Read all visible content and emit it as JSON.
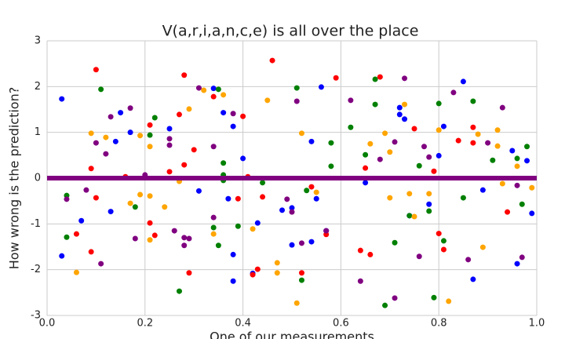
{
  "chart_data": {
    "type": "scatter",
    "title": "V(a,r,i,a,n,c,e) is all over the place",
    "x_label": "One of our measurements",
    "y_label": "How wrong is the prediction?",
    "xlim": [
      0,
      1
    ],
    "ylim": [
      -3,
      3
    ],
    "xticks": [
      {
        "value": 0,
        "label": "0.0"
      },
      0.2,
      0.4,
      0.6,
      0.8,
      {
        "value": 1,
        "label": "1.0"
      }
    ],
    "yticks": [
      -3,
      -2,
      -1,
      0,
      1,
      2,
      3
    ],
    "grid": true,
    "hline": {
      "value": 0,
      "color": "#800080"
    },
    "series": [
      {
        "color": "#0000ff",
        "x": [
          0.03,
          0.03,
          0.07,
          0.13,
          0.14,
          0.15,
          0.17,
          0.25,
          0.31,
          0.34,
          0.36,
          0.37,
          0.38,
          0.38,
          0.38,
          0.4,
          0.42,
          0.43,
          0.48,
          0.5,
          0.5,
          0.54,
          0.55,
          0.54,
          0.56,
          0.57,
          0.65,
          0.72,
          0.72,
          0.73,
          0.74,
          0.78,
          0.8,
          0.81,
          0.85,
          0.87,
          0.89,
          0.95,
          0.96,
          0.98,
          0.99
        ],
        "values": [
          1.73,
          -1.7,
          -0.93,
          -0.73,
          0.8,
          1.43,
          1.0,
          1.08,
          -0.28,
          1.96,
          1.43,
          -0.45,
          1.13,
          -1.67,
          -2.25,
          0.43,
          -2.08,
          -0.98,
          -0.7,
          -0.65,
          -1.46,
          0.8,
          -0.45,
          -1.39,
          1.99,
          -1.15,
          -0.1,
          1.54,
          1.39,
          1.29,
          -0.82,
          -0.57,
          0.49,
          1.13,
          2.11,
          -2.21,
          -0.26,
          0.6,
          -1.87,
          0.38,
          -0.77
        ]
      },
      {
        "color": "#ff0000",
        "x": [
          0.1,
          0.06,
          0.09,
          0.1,
          0.09,
          0.16,
          0.21,
          0.21,
          0.22,
          0.25,
          0.27,
          0.28,
          0.28,
          0.3,
          0.29,
          0.34,
          0.39,
          0.4,
          0.41,
          0.42,
          0.43,
          0.44,
          0.46,
          0.52,
          0.54,
          0.57,
          0.59,
          0.64,
          0.65,
          0.66,
          0.68,
          0.75,
          0.79,
          0.8,
          0.81,
          0.84,
          0.87,
          0.87,
          0.94
        ],
        "values": [
          2.37,
          -1.22,
          0.21,
          -0.43,
          -1.61,
          0.03,
          1.16,
          -0.98,
          -1.25,
          0.14,
          1.39,
          2.25,
          0.29,
          0.62,
          -2.07,
          1.78,
          -0.45,
          1.35,
          0.03,
          -2.11,
          -1.99,
          -0.41,
          2.57,
          -2.07,
          -0.19,
          -1.23,
          2.19,
          -1.58,
          0.22,
          -1.67,
          2.21,
          1.08,
          0.15,
          -1.21,
          -1.56,
          0.82,
          0.77,
          1.11,
          -0.74
        ]
      },
      {
        "color": "#008000",
        "x": [
          0.04,
          0.04,
          0.11,
          0.18,
          0.21,
          0.22,
          0.27,
          0.35,
          0.34,
          0.36,
          0.36,
          0.35,
          0.36,
          0.39,
          0.44,
          0.51,
          0.52,
          0.53,
          0.58,
          0.58,
          0.62,
          0.65,
          0.67,
          0.67,
          0.69,
          0.71,
          0.74,
          0.76,
          0.78,
          0.79,
          0.8,
          0.81,
          0.85,
          0.87,
          0.91,
          0.96,
          0.97,
          0.98
        ],
        "values": [
          -0.38,
          -1.29,
          1.94,
          -0.63,
          0.94,
          1.32,
          -2.47,
          1.94,
          -1.08,
          0.07,
          -0.05,
          -1.47,
          0.33,
          -1.05,
          -0.1,
          1.97,
          -2.23,
          -0.27,
          0.77,
          0.26,
          1.11,
          0.51,
          2.16,
          1.61,
          -2.78,
          -1.41,
          -0.82,
          0.27,
          -0.72,
          -2.61,
          1.63,
          -1.37,
          -0.43,
          1.68,
          0.39,
          0.43,
          -0.57,
          0.69
        ]
      },
      {
        "color": "#ffa500",
        "x": [
          0.06,
          0.09,
          0.12,
          0.17,
          0.19,
          0.19,
          0.21,
          0.21,
          0.21,
          0.24,
          0.27,
          0.29,
          0.32,
          0.34,
          0.36,
          0.42,
          0.45,
          0.47,
          0.47,
          0.51,
          0.52,
          0.55,
          0.66,
          0.69,
          0.7,
          0.7,
          0.73,
          0.74,
          0.75,
          0.78,
          0.8,
          0.82,
          0.88,
          0.89,
          0.92,
          0.92,
          0.93,
          0.96,
          0.99
        ],
        "values": [
          -2.06,
          0.98,
          0.89,
          -0.55,
          -0.36,
          0.93,
          0.69,
          -0.39,
          -1.35,
          -0.63,
          -0.07,
          1.51,
          1.92,
          -1.22,
          1.82,
          -1.11,
          1.7,
          -1.85,
          -2.07,
          -2.73,
          0.98,
          -0.31,
          0.75,
          0.98,
          0.57,
          -0.43,
          1.61,
          -0.34,
          -0.84,
          -0.34,
          1.05,
          -2.69,
          0.96,
          -1.51,
          1.05,
          0.7,
          -0.12,
          0.26,
          -0.21
        ]
      },
      {
        "color": "#800080",
        "x": [
          0.04,
          0.08,
          0.1,
          0.11,
          0.12,
          0.13,
          0.17,
          0.18,
          0.2,
          0.25,
          0.25,
          0.26,
          0.28,
          0.28,
          0.29,
          0.31,
          0.34,
          0.34,
          0.38,
          0.49,
          0.5,
          0.51,
          0.52,
          0.57,
          0.62,
          0.64,
          0.68,
          0.71,
          0.71,
          0.73,
          0.76,
          0.77,
          0.78,
          0.83,
          0.86,
          0.9,
          0.93,
          0.96,
          0.97
        ],
        "values": [
          -0.46,
          -0.26,
          0.77,
          -1.87,
          0.53,
          1.34,
          1.53,
          -1.32,
          0.07,
          0.86,
          0.72,
          -1.15,
          -1.3,
          -1.47,
          -1.32,
          1.97,
          0.69,
          -0.86,
          1.41,
          -0.46,
          -0.74,
          1.68,
          -1.42,
          -1.15,
          1.7,
          -2.25,
          0.41,
          0.79,
          -2.62,
          2.18,
          -1.71,
          0.69,
          0.46,
          1.87,
          -1.78,
          0.77,
          1.54,
          -0.16,
          -1.73
        ]
      }
    ]
  }
}
